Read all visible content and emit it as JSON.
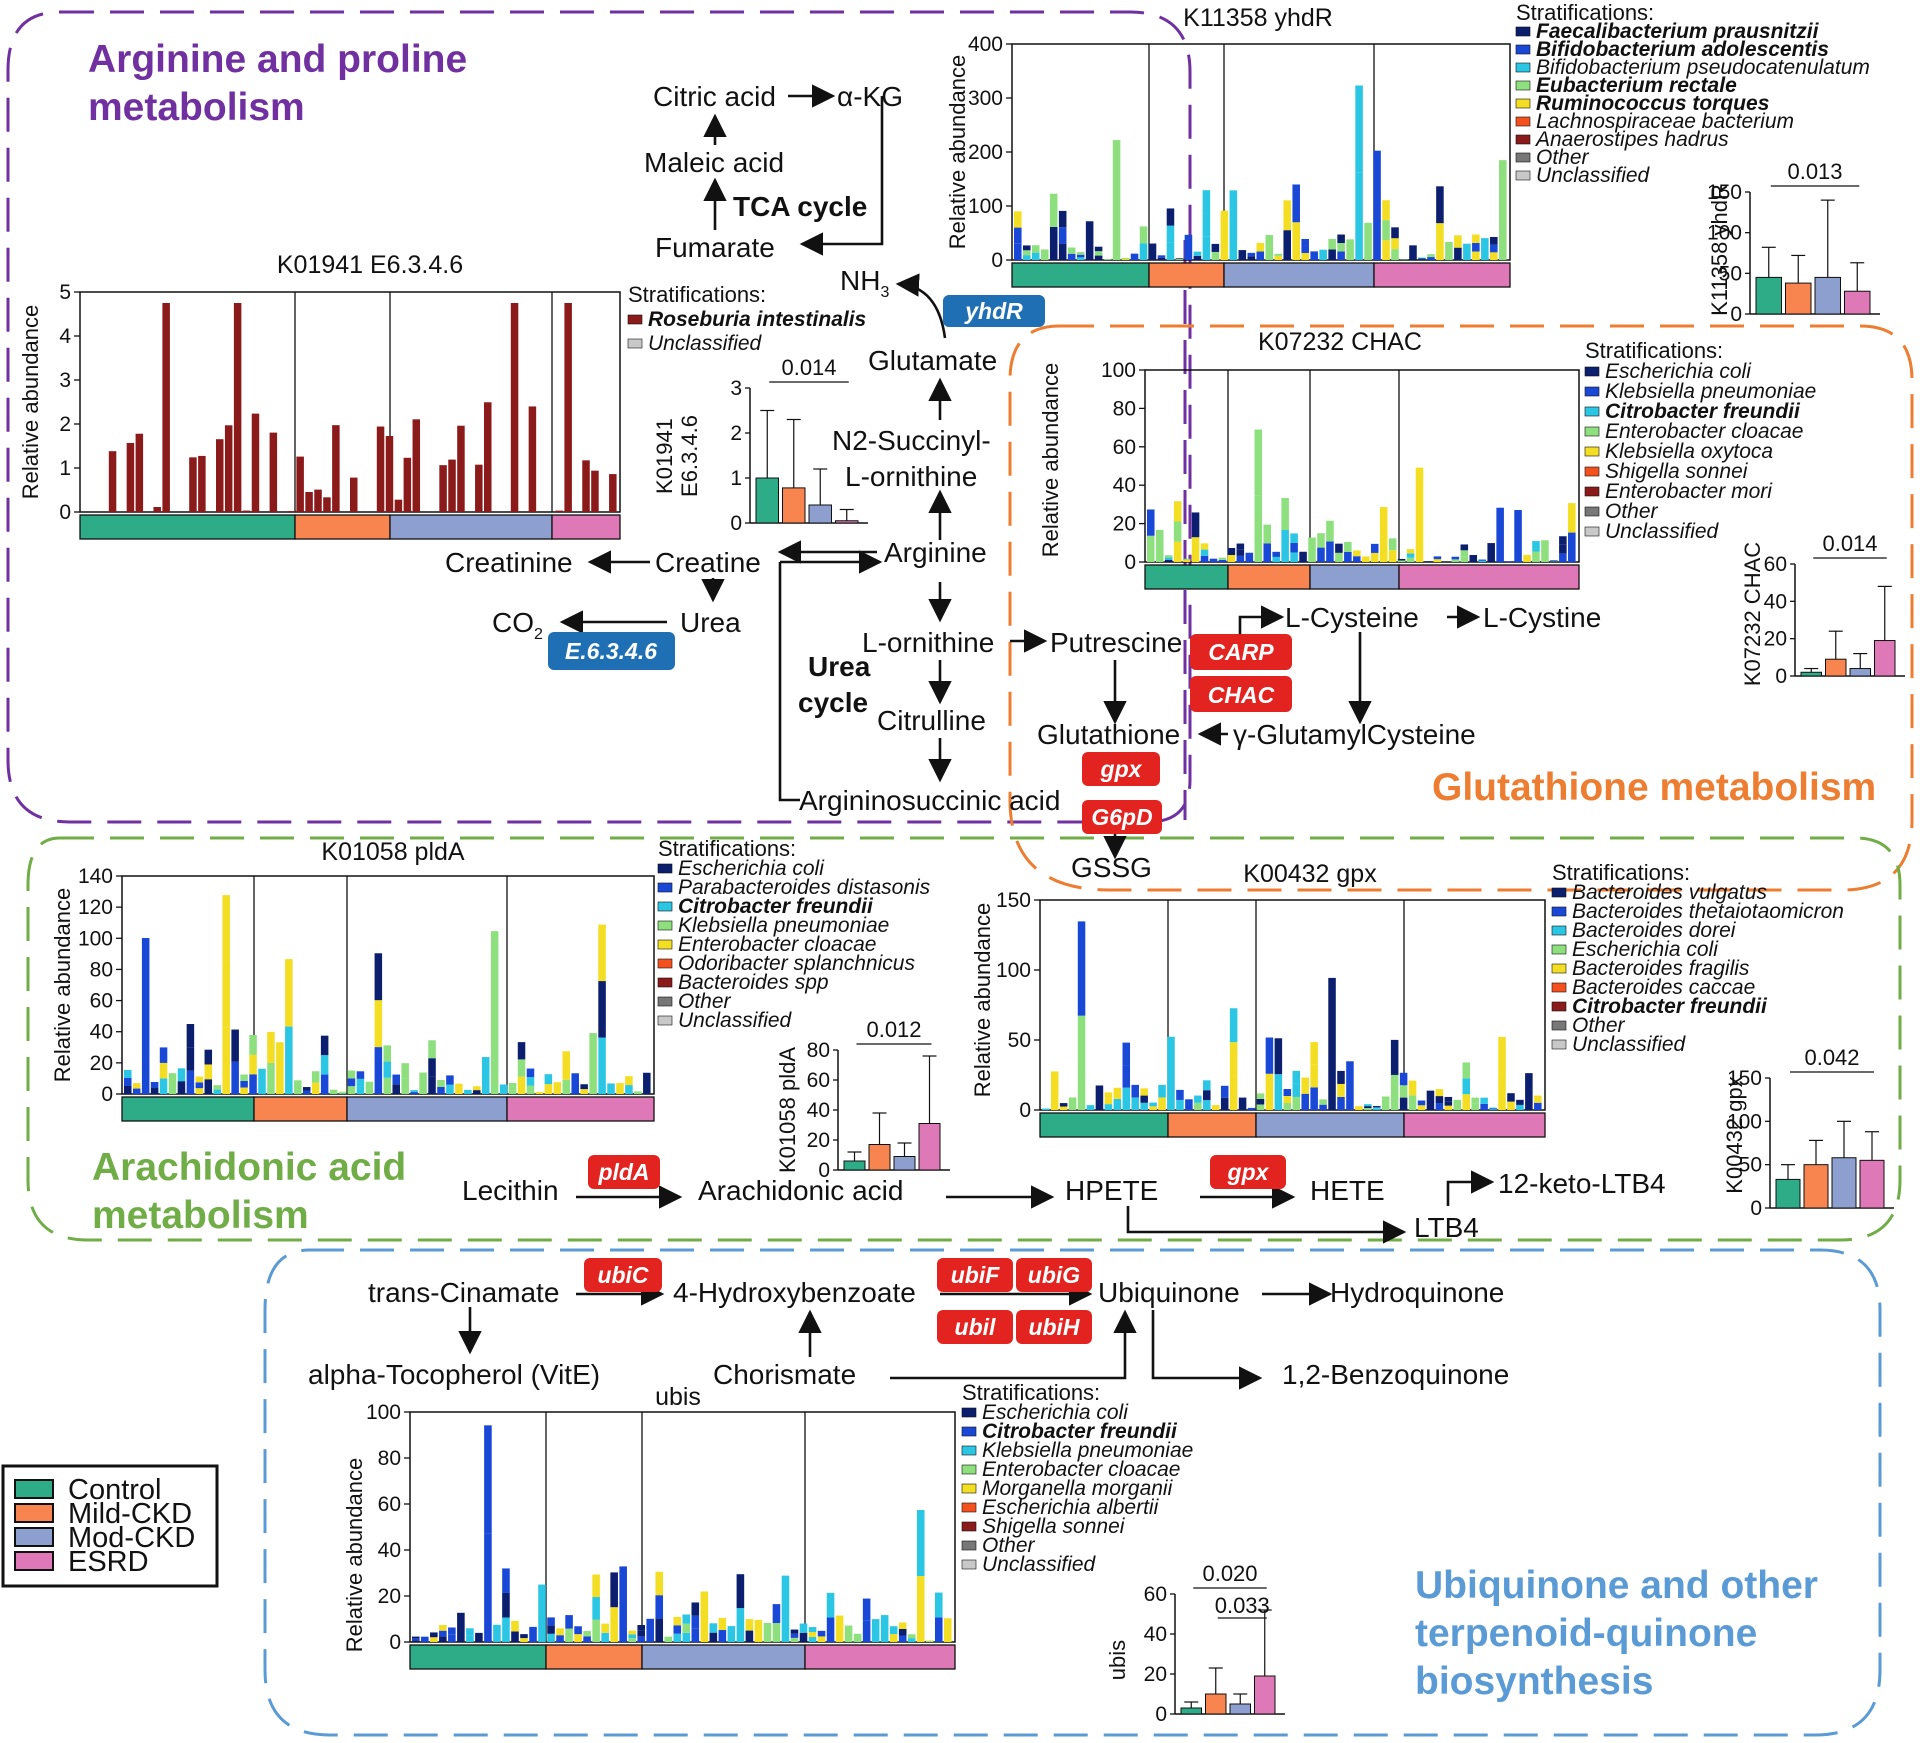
{
  "regions": [
    {
      "key": "arg",
      "lines": [
        "Arginine and proline",
        "metabolism"
      ],
      "color": "#7030a0"
    },
    {
      "key": "glu",
      "lines": [
        "Glutathione metabolism"
      ],
      "color": "#ed7d31"
    },
    {
      "key": "ara",
      "lines": [
        "Arachidonic acid",
        "metabolism"
      ],
      "color": "#70ad47"
    },
    {
      "key": "ubi",
      "lines": [
        "Ubiquinone and other",
        "terpenoid-quinone",
        "biosynthesis"
      ],
      "color": "#5b9bd5"
    }
  ],
  "pathway": {
    "citric_acid": "Citric acid",
    "akg": "α-KG",
    "maleic_acid": "Maleic acid",
    "tca_cycle": "TCA cycle",
    "fumarate": "Fumarate",
    "nh3": "NH",
    "nh3_sub": "3",
    "glutamate": "Glutamate",
    "n2_succinyl_1": "N2-Succinyl-",
    "n2_succinyl_2": "L-ornithine",
    "arginine": "Arginine",
    "creatinine": "Creatinine",
    "creatine": "Creatine",
    "urea": "Urea",
    "co2": "CO",
    "co2_sub": "2",
    "l_ornithine": "L-ornithine",
    "putrescine": "Putrescine",
    "urea_cycle_1": "Urea",
    "urea_cycle_2": "cycle",
    "citrulline": "Citrulline",
    "argininosuccinic": "Argininosuccinic acid",
    "l_cysteine": "L-Cysteine",
    "l_cystine": "L-Cystine",
    "glutathione": "Glutathione",
    "gamma_glu_cys": "γ-GlutamylCysteine",
    "gssg": "GSSG",
    "lecithin": "Lecithin",
    "arachidonic_acid": "Arachidonic acid",
    "hpete": "HPETE",
    "hete": "HETE",
    "keto_ltb4": "12-keto-LTB4",
    "ltb4": "LTB4",
    "trans_cinamate": "trans-Cinamate",
    "hydroxybenzoate": "4-Hydroxybenzoate",
    "ubiquinone": "Ubiquinone",
    "hydroquinone": "Hydroquinone",
    "tocopherol": "alpha-Tocopherol (VitE)",
    "chorismate": "Chorismate",
    "benzoquinone": "1,2-Benzoquinone"
  },
  "enzymes": {
    "yhdR": "yhdR",
    "e6346": "E.6.3.4.6",
    "carp": "CARP",
    "chac": "CHAC",
    "gpx_glu": "gpx",
    "g6pd": "G6pD",
    "plda": "pldA",
    "gpx_ara": "gpx",
    "ubic": "ubiC",
    "ubif": "ubiF",
    "ubig": "ubiG",
    "ubil": "ubil",
    "ubih": "ubiH"
  },
  "legend": {
    "items": [
      "Control",
      "Mild-CKD",
      "Mod-CKD",
      "ESRD"
    ],
    "colors": [
      "#2eab87",
      "#f8844f",
      "#8d9fcf",
      "#df78b6"
    ]
  },
  "strat_label": "Stratifications:",
  "colors": {
    "enzyme_red": "#e3231f",
    "enzyme_blue": "#1f6fb5"
  },
  "panels": [
    {
      "key": "k01941",
      "title": "K01941 E6.3.4.6",
      "ylabel": "Relative abundance",
      "yticks": [
        "5",
        "4",
        "3",
        "2",
        "1",
        "0"
      ],
      "species": [
        {
          "name": "Roseburia intestinalis",
          "bold": true,
          "color": "#8b1a1a"
        },
        {
          "name": "Unclassified",
          "bold": false,
          "color": "#c8c8c8"
        }
      ],
      "bar_ylabel_1": "K01941",
      "bar_ylabel_2": "E6.3.4.6",
      "bar_yticks": [
        "3",
        "2",
        "1",
        "0"
      ],
      "pvalue": "0.014",
      "bar_values": [
        1.0,
        0.78,
        0.4,
        0.05
      ],
      "bar_err": [
        2.5,
        2.3,
        1.2,
        0.3
      ],
      "bar_ymax": 3
    },
    {
      "key": "k11358",
      "title": "K11358 yhdR",
      "ylabel": "Relative abundance",
      "yticks": [
        "400",
        "300",
        "200",
        "100",
        "0"
      ],
      "species": [
        {
          "name": "Faecalibacterium prausnitzii",
          "bold": true,
          "color": "#0b1f6e"
        },
        {
          "name": "Bifidobacterium adolescentis",
          "bold": true,
          "color": "#1a48d6"
        },
        {
          "name": "Bifidobacterium pseudocatenulatum",
          "bold": false,
          "color": "#2bc6e3"
        },
        {
          "name": "Eubacterium rectale",
          "bold": true,
          "color": "#8ee07f"
        },
        {
          "name": "Ruminococcus torques",
          "bold": true,
          "color": "#f3de24"
        },
        {
          "name": "Lachnospiraceae bacterium",
          "bold": false,
          "color": "#f4511e"
        },
        {
          "name": "Anaerostipes hadrus",
          "bold": false,
          "color": "#8b1a1a"
        },
        {
          "name": "Other",
          "bold": false,
          "color": "#777777"
        },
        {
          "name": "Unclassified",
          "bold": false,
          "color": "#c8c8c8"
        }
      ],
      "bar_ylabel_1": "K11358 yhdR",
      "bar_ylabel_2": "",
      "bar_yticks": [
        "150",
        "100",
        "50",
        "0"
      ],
      "pvalue": "0.013",
      "bar_values": [
        45,
        38,
        45,
        28
      ],
      "bar_err": [
        82,
        72,
        140,
        63
      ],
      "bar_ymax": 150
    },
    {
      "key": "k07232",
      "title": "K07232 CHAC",
      "ylabel": "Relative abundance",
      "yticks": [
        "100",
        "80",
        "60",
        "40",
        "20",
        "0"
      ],
      "species": [
        {
          "name": "Escherichia coli",
          "bold": false,
          "color": "#0b1f6e"
        },
        {
          "name": "Klebsiella pneumoniae",
          "bold": false,
          "color": "#1a48d6"
        },
        {
          "name": "Citrobacter freundii",
          "bold": true,
          "color": "#2bc6e3"
        },
        {
          "name": "Enterobacter cloacae",
          "bold": false,
          "color": "#8ee07f"
        },
        {
          "name": "Klebsiella oxytoca",
          "bold": false,
          "color": "#f3de24"
        },
        {
          "name": "Shigella sonnei",
          "bold": false,
          "color": "#f4511e"
        },
        {
          "name": "Enterobacter mori",
          "bold": false,
          "color": "#8b1a1a"
        },
        {
          "name": "Other",
          "bold": false,
          "color": "#777777"
        },
        {
          "name": "Unclassified",
          "bold": false,
          "color": "#c8c8c8"
        }
      ],
      "bar_ylabel_1": "K07232 CHAC",
      "bar_ylabel_2": "",
      "bar_yticks": [
        "60",
        "40",
        "20",
        "0"
      ],
      "pvalue": "0.014",
      "bar_values": [
        2,
        9,
        4,
        19
      ],
      "bar_err": [
        4,
        24,
        12,
        48
      ],
      "bar_ymax": 60
    },
    {
      "key": "k01058",
      "title": "K01058 pldA",
      "ylabel": "Relative abundance",
      "yticks": [
        "140",
        "120",
        "100",
        "80",
        "60",
        "40",
        "20",
        "0"
      ],
      "species": [
        {
          "name": "Escherichia coli",
          "bold": false,
          "color": "#0b1f6e"
        },
        {
          "name": "Parabacteroides distasonis",
          "bold": false,
          "color": "#1a48d6"
        },
        {
          "name": "Citrobacter freundii",
          "bold": true,
          "color": "#2bc6e3"
        },
        {
          "name": "Klebsiella pneumoniae",
          "bold": false,
          "color": "#8ee07f"
        },
        {
          "name": "Enterobacter cloacae",
          "bold": false,
          "color": "#f3de24"
        },
        {
          "name": "Odoribacter splanchnicus",
          "bold": false,
          "color": "#f4511e"
        },
        {
          "name": "Bacteroides spp",
          "bold": false,
          "color": "#8b1a1a"
        },
        {
          "name": "Other",
          "bold": false,
          "color": "#777777"
        },
        {
          "name": "Unclassified",
          "bold": false,
          "color": "#c8c8c8"
        }
      ],
      "bar_ylabel_1": "K01058 pldA",
      "bar_ylabel_2": "",
      "bar_yticks": [
        "80",
        "60",
        "40",
        "20",
        "0"
      ],
      "pvalue": "0.012",
      "bar_values": [
        6,
        17,
        9,
        31
      ],
      "bar_err": [
        12,
        38,
        18,
        76
      ],
      "bar_ymax": 80
    },
    {
      "key": "k00432",
      "title": "K00432 gpx",
      "ylabel": "Relative abundance",
      "yticks": [
        "150",
        "100",
        "50",
        "0"
      ],
      "species": [
        {
          "name": "Bacteroides vulgatus",
          "bold": false,
          "color": "#0b1f6e"
        },
        {
          "name": "Bacteroides thetaiotaomicron",
          "bold": false,
          "color": "#1a48d6"
        },
        {
          "name": "Bacteroides dorei",
          "bold": false,
          "color": "#2bc6e3"
        },
        {
          "name": "Escherichia coli",
          "bold": false,
          "color": "#8ee07f"
        },
        {
          "name": "Bacteroides fragilis",
          "bold": false,
          "color": "#f3de24"
        },
        {
          "name": "Bacteroides caccae",
          "bold": false,
          "color": "#f4511e"
        },
        {
          "name": "Citrobacter freundii",
          "bold": true,
          "color": "#8b1a1a"
        },
        {
          "name": "Other",
          "bold": false,
          "color": "#777777"
        },
        {
          "name": "Unclassified",
          "bold": false,
          "color": "#c8c8c8"
        }
      ],
      "bar_ylabel_1": "K00432 gpx",
      "bar_ylabel_2": "",
      "bar_yticks": [
        "150",
        "100",
        "50",
        "0"
      ],
      "pvalue": "0.042",
      "bar_values": [
        33,
        50,
        58,
        55
      ],
      "bar_err": [
        50,
        78,
        100,
        88
      ],
      "bar_ymax": 150
    },
    {
      "key": "ubis",
      "title": "ubis",
      "ylabel": "Relative abundance",
      "yticks": [
        "100",
        "80",
        "60",
        "40",
        "20",
        "0"
      ],
      "species": [
        {
          "name": "Escherichia coli",
          "bold": false,
          "color": "#0b1f6e"
        },
        {
          "name": "Citrobacter freundii",
          "bold": true,
          "color": "#1a48d6"
        },
        {
          "name": "Klebsiella pneumoniae",
          "bold": false,
          "color": "#2bc6e3"
        },
        {
          "name": "Enterobacter cloacae",
          "bold": false,
          "color": "#8ee07f"
        },
        {
          "name": "Morganella morganii",
          "bold": false,
          "color": "#f3de24"
        },
        {
          "name": "Escherichia albertii",
          "bold": false,
          "color": "#f4511e"
        },
        {
          "name": "Shigella sonnei",
          "bold": false,
          "color": "#8b1a1a"
        },
        {
          "name": "Other",
          "bold": false,
          "color": "#777777"
        },
        {
          "name": "Unclassified",
          "bold": false,
          "color": "#c8c8c8"
        }
      ],
      "bar_ylabel_1": "ubis",
      "bar_ylabel_2": "",
      "bar_yticks": [
        "60",
        "40",
        "20",
        "0"
      ],
      "pvalue": "0.020",
      "pvalue2": "0.033",
      "bar_values": [
        3,
        10,
        5,
        19
      ],
      "bar_err": [
        6,
        23,
        10,
        52
      ],
      "bar_ymax": 60
    }
  ]
}
